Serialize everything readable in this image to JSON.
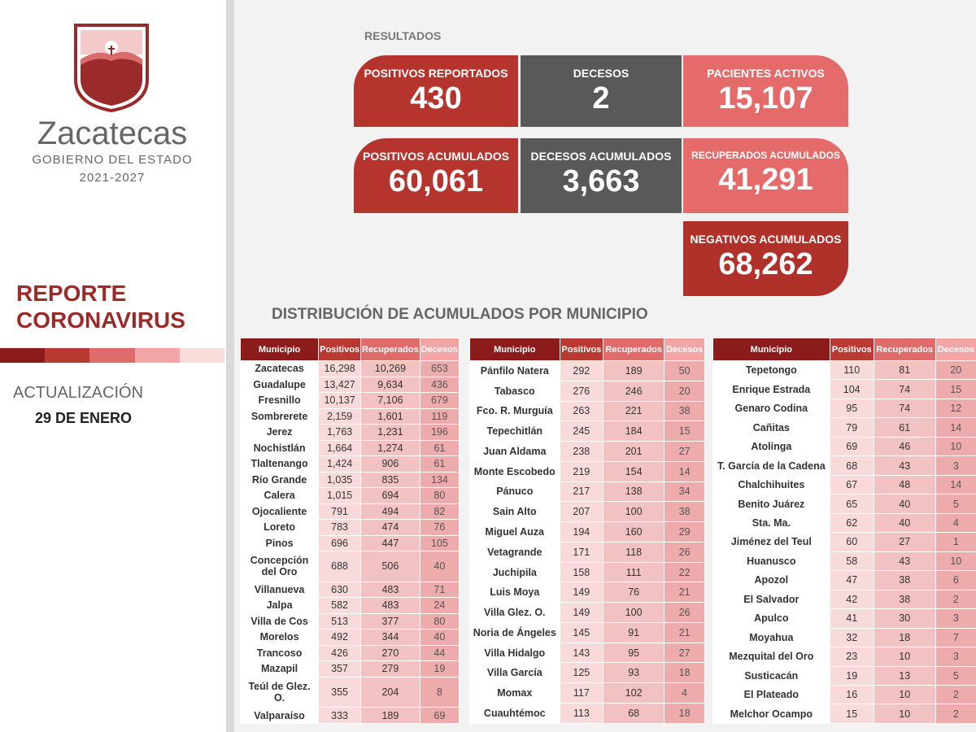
{
  "sidebar": {
    "brand": "Zacatecas",
    "subtitle": "GOBIERNO DEL ESTADO",
    "period": "2021-2027",
    "report_title": [
      "REPORTE",
      "CORONAVIRUS"
    ],
    "update_label": "ACTUALIZACIÓN",
    "update_date": "29 DE ENERO"
  },
  "results": {
    "title": "RESULTADOS",
    "cards": [
      {
        "label": "POSITIVOS REPORTADOS",
        "value": "430"
      },
      {
        "label": "DECESOS",
        "value": "2"
      },
      {
        "label": "PACIENTES ACTIVOS",
        "value": "15,107"
      },
      {
        "label": "POSITIVOS ACUMULADOS",
        "value": "60,061"
      },
      {
        "label": "DECESOS ACUMULADOS",
        "value": "3,663"
      },
      {
        "label": "RECUPERADOS ACUMULADOS",
        "value": "41,291"
      },
      {
        "label": "NEGATIVOS ACUMULADOS",
        "value": "68,262"
      }
    ]
  },
  "distribution": {
    "title": "DISTRIBUCIÓN DE ACUMULADOS POR MUNICIPIO",
    "tables": [
      {
        "headers": [
          "Municipio",
          "Positivos",
          "Recuperados",
          "Decesos"
        ],
        "rows": [
          [
            "Zacatecas",
            "16,298",
            "10,269",
            "653"
          ],
          [
            "Guadalupe",
            "13,427",
            "9,634",
            "436"
          ],
          [
            "Fresnillo",
            "10,137",
            "7,106",
            "679"
          ],
          [
            "Sombrerete",
            "2,159",
            "1,601",
            "119"
          ],
          [
            "Jerez",
            "1,763",
            "1,231",
            "196"
          ],
          [
            "Nochistlán",
            "1,664",
            "1,274",
            "61"
          ],
          [
            "Tlaltenango",
            "1,424",
            "906",
            "61"
          ],
          [
            "Río Grande",
            "1,035",
            "835",
            "134"
          ],
          [
            "Calera",
            "1,015",
            "694",
            "80"
          ],
          [
            "Ojocaliente",
            "791",
            "494",
            "82"
          ],
          [
            "Loreto",
            "783",
            "474",
            "76"
          ],
          [
            "Pinos",
            "696",
            "447",
            "105"
          ],
          [
            "Concepción del Oro",
            "688",
            "506",
            "40"
          ],
          [
            "Villanueva",
            "630",
            "483",
            "71"
          ],
          [
            "Jalpa",
            "582",
            "483",
            "24"
          ],
          [
            "Villa de Cos",
            "513",
            "377",
            "80"
          ],
          [
            "Morelos",
            "492",
            "344",
            "40"
          ],
          [
            "Trancoso",
            "426",
            "270",
            "44"
          ],
          [
            "Mazapil",
            "357",
            "279",
            "19"
          ],
          [
            "Teúl de Glez. O.",
            "355",
            "204",
            "8"
          ],
          [
            "Valparaíso",
            "333",
            "189",
            "69"
          ]
        ]
      },
      {
        "headers": [
          "Municipio",
          "Positivos",
          "Recuperados",
          "Decesos"
        ],
        "rows": [
          [
            "Pánfilo Natera",
            "292",
            "189",
            "50"
          ],
          [
            "Tabasco",
            "276",
            "246",
            "20"
          ],
          [
            "Fco. R. Murguía",
            "263",
            "221",
            "38"
          ],
          [
            "Tepechitlán",
            "245",
            "184",
            "15"
          ],
          [
            "Juan Aldama",
            "238",
            "201",
            "27"
          ],
          [
            "Monte Escobedo",
            "219",
            "154",
            "14"
          ],
          [
            "Pánuco",
            "217",
            "138",
            "34"
          ],
          [
            "Sain Alto",
            "207",
            "100",
            "38"
          ],
          [
            "Miguel Auza",
            "194",
            "160",
            "29"
          ],
          [
            "Vetagrande",
            "171",
            "118",
            "26"
          ],
          [
            "Juchipila",
            "158",
            "111",
            "22"
          ],
          [
            "Luis Moya",
            "149",
            "76",
            "21"
          ],
          [
            "Villa Glez. O.",
            "149",
            "100",
            "26"
          ],
          [
            "Noria de Ángeles",
            "145",
            "91",
            "21"
          ],
          [
            "Villa Hidalgo",
            "143",
            "95",
            "27"
          ],
          [
            "Villa García",
            "125",
            "93",
            "18"
          ],
          [
            "Momax",
            "117",
            "102",
            "4"
          ],
          [
            "Cuauhtémoc",
            "113",
            "68",
            "18"
          ]
        ]
      },
      {
        "headers": [
          "Municipio",
          "Positivos",
          "Recuperados",
          "Decesos"
        ],
        "rows": [
          [
            "Tepetongo",
            "110",
            "81",
            "20"
          ],
          [
            "Enrique Estrada",
            "104",
            "74",
            "15"
          ],
          [
            "Genaro Codina",
            "95",
            "74",
            "12"
          ],
          [
            "Cañitas",
            "79",
            "61",
            "14"
          ],
          [
            "Atolinga",
            "69",
            "46",
            "10"
          ],
          [
            "T. García de la Cadena",
            "68",
            "43",
            "3"
          ],
          [
            "Chalchihuites",
            "67",
            "48",
            "14"
          ],
          [
            "Benito Juárez",
            "65",
            "40",
            "5"
          ],
          [
            "Sta. Ma.",
            "62",
            "40",
            "4"
          ],
          [
            "Jiménez del Teul",
            "60",
            "27",
            "1"
          ],
          [
            "Huanusco",
            "58",
            "43",
            "10"
          ],
          [
            "Apozol",
            "47",
            "38",
            "6"
          ],
          [
            "El Salvador",
            "42",
            "38",
            "2"
          ],
          [
            "Apulco",
            "41",
            "30",
            "3"
          ],
          [
            "Moyahua",
            "32",
            "18",
            "7"
          ],
          [
            "Mezquital del Oro",
            "23",
            "10",
            "3"
          ],
          [
            "Susticacán",
            "19",
            "13",
            "5"
          ],
          [
            "El Plateado",
            "16",
            "10",
            "2"
          ],
          [
            "Melchor Ocampo",
            "15",
            "10",
            "2"
          ]
        ]
      }
    ]
  }
}
